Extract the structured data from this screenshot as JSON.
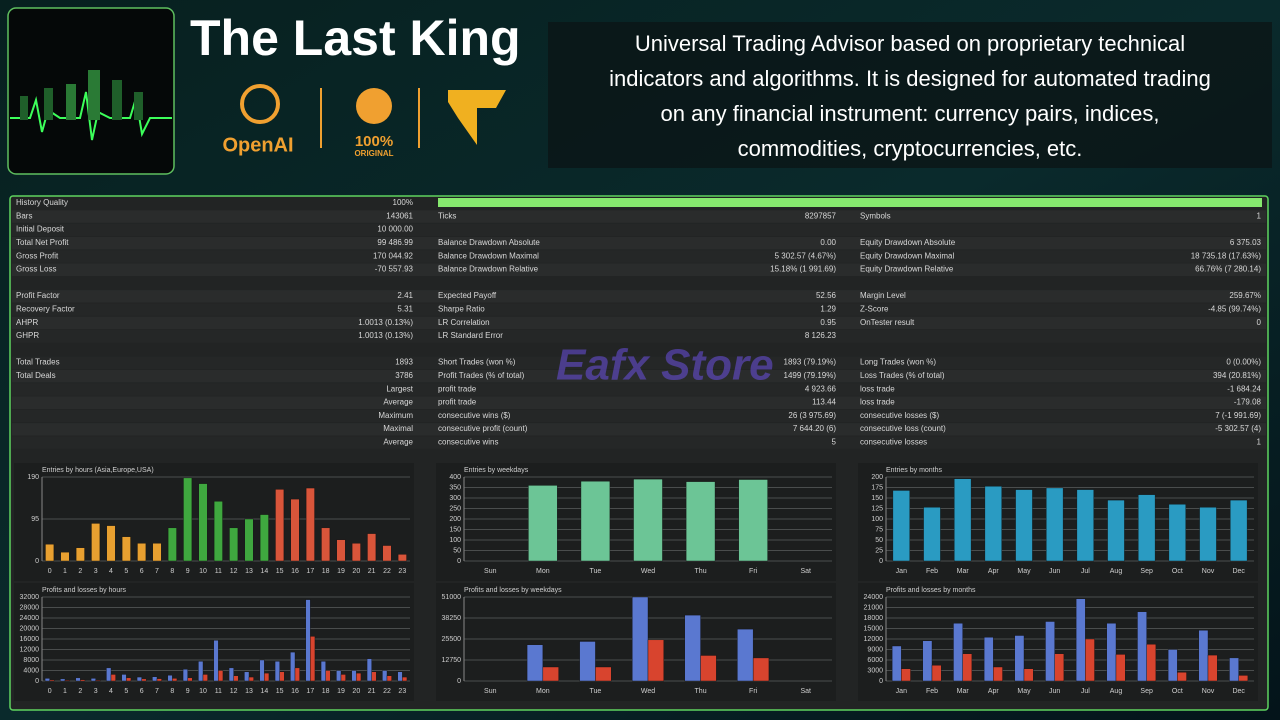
{
  "header": {
    "title": "The Last King",
    "badges": [
      "OpenAI",
      "100%",
      "ORIGINAL"
    ],
    "description": [
      "Universal Trading Advisor based on proprietary technical",
      "indicators and algorithms. It is designed for automated trading",
      "on any financial instrument: currency pairs, indices,",
      "commodities, cryptocurrencies, etc."
    ]
  },
  "watermark": "Eafx Store",
  "report": {
    "history_quality": {
      "label": "History Quality",
      "value": 100,
      "value_label": "100%"
    },
    "sections": [
      [
        [
          {
            "label": "Bars",
            "value": "143061"
          },
          {
            "label": "Ticks",
            "value": "8297857"
          },
          {
            "label": "Symbols",
            "value": "1"
          }
        ],
        [
          {
            "label": "Initial Deposit",
            "value": "10 000.00"
          },
          null,
          null
        ],
        [
          {
            "label": "Total Net Profit",
            "value": "99 486.99"
          },
          {
            "label": "Balance Drawdown Absolute",
            "value": "0.00"
          },
          {
            "label": "Equity Drawdown Absolute",
            "value": "6 375.03"
          }
        ],
        [
          {
            "label": "Gross Profit",
            "value": "170 044.92"
          },
          {
            "label": "Balance Drawdown Maximal",
            "value": "5 302.57 (4.67%)"
          },
          {
            "label": "Equity Drawdown Maximal",
            "value": "18 735.18 (17.63%)"
          }
        ],
        [
          {
            "label": "Gross Loss",
            "value": "-70 557.93"
          },
          {
            "label": "Balance Drawdown Relative",
            "value": "15.18% (1 991.69)"
          },
          {
            "label": "Equity Drawdown Relative",
            "value": "66.76% (7 280.14)"
          }
        ]
      ],
      [
        [
          {
            "label": "Profit Factor",
            "value": "2.41"
          },
          {
            "label": "Expected Payoff",
            "value": "52.56"
          },
          {
            "label": "Margin Level",
            "value": "259.67%"
          }
        ],
        [
          {
            "label": "Recovery Factor",
            "value": "5.31"
          },
          {
            "label": "Sharpe Ratio",
            "value": "1.29"
          },
          {
            "label": "Z-Score",
            "value": "-4.85 (99.74%)"
          }
        ],
        [
          {
            "label": "AHPR",
            "value": "1.0013 (0.13%)"
          },
          {
            "label": "LR Correlation",
            "value": "0.95"
          },
          {
            "label": "OnTester result",
            "value": "0"
          }
        ],
        [
          {
            "label": "GHPR",
            "value": "1.0013 (0.13%)"
          },
          {
            "label": "LR Standard Error",
            "value": "8 126.23"
          },
          null
        ]
      ],
      [
        [
          {
            "label": "Total Trades",
            "value": "1893"
          },
          {
            "label": "Short Trades (won %)",
            "value": "1893 (79.19%)"
          },
          {
            "label": "Long Trades (won %)",
            "value": "0 (0.00%)"
          }
        ],
        [
          {
            "label": "Total Deals",
            "value": "3786"
          },
          {
            "label": "Profit Trades (% of total)",
            "value": "1499 (79.19%)"
          },
          {
            "label": "Loss Trades (% of total)",
            "value": "394 (20.81%)"
          }
        ],
        [
          {
            "value": "Largest"
          },
          {
            "label": "profit trade",
            "value": "4 923.66"
          },
          {
            "label": "loss trade",
            "value": "-1 684.24"
          }
        ],
        [
          {
            "value": "Average"
          },
          {
            "label": "profit trade",
            "value": "113.44"
          },
          {
            "label": "loss trade",
            "value": "-179.08"
          }
        ],
        [
          {
            "value": "Maximum"
          },
          {
            "label": "consecutive wins ($)",
            "value": "26 (3 975.69)"
          },
          {
            "label": "consecutive losses ($)",
            "value": "7 (-1 991.69)"
          }
        ],
        [
          {
            "value": "Maximal"
          },
          {
            "label": "consecutive profit (count)",
            "value": "7 644.20 (6)"
          },
          {
            "label": "consecutive loss (count)",
            "value": "-5 302.57 (4)"
          }
        ],
        [
          {
            "value": "Average"
          },
          {
            "label": "consecutive wins",
            "value": "5"
          },
          {
            "label": "consecutive losses",
            "value": "1"
          }
        ]
      ]
    ]
  },
  "chart_data": [
    {
      "type": "bar",
      "title": "Entries by hours (Asia,Europe,USA)",
      "categories": [
        "0",
        "1",
        "2",
        "3",
        "4",
        "5",
        "6",
        "7",
        "8",
        "9",
        "10",
        "11",
        "12",
        "13",
        "14",
        "15",
        "16",
        "17",
        "18",
        "19",
        "20",
        "21",
        "22",
        "23"
      ],
      "series": [
        {
          "colors": [
            "#e8a030",
            "#e8a030",
            "#e8a030",
            "#e8a030",
            "#e8a030",
            "#e8a030",
            "#e8a030",
            "#e8a030",
            "#3fa83f",
            "#3fa83f",
            "#3fa83f",
            "#3fa83f",
            "#3fa83f",
            "#3fa83f",
            "#3fa83f",
            "#d9553a",
            "#d9553a",
            "#d9553a",
            "#d9553a",
            "#d9553a",
            "#d9553a",
            "#d9553a",
            "#d9553a",
            "#d9553a"
          ],
          "values": [
            38,
            20,
            30,
            85,
            80,
            55,
            40,
            40,
            75,
            188,
            175,
            135,
            75,
            95,
            105,
            162,
            140,
            165,
            75,
            48,
            40,
            62,
            35,
            15
          ]
        }
      ],
      "ylim": [
        0,
        190
      ],
      "yticks": [
        0,
        95,
        190
      ],
      "grid": true
    },
    {
      "type": "bar",
      "title": "Entries by weekdays",
      "categories": [
        "Sun",
        "Mon",
        "Tue",
        "Wed",
        "Thu",
        "Fri",
        "Sat"
      ],
      "series": [
        {
          "color": "#6cc596",
          "values": [
            0,
            360,
            380,
            390,
            378,
            388,
            0
          ]
        }
      ],
      "ylim": [
        0,
        400
      ],
      "yticks": [
        0,
        50,
        100,
        150,
        200,
        250,
        300,
        350,
        400
      ],
      "grid": true
    },
    {
      "type": "bar",
      "title": "Entries by months",
      "categories": [
        "Jan",
        "Feb",
        "Mar",
        "Apr",
        "May",
        "Jun",
        "Jul",
        "Aug",
        "Sep",
        "Oct",
        "Nov",
        "Dec"
      ],
      "series": [
        {
          "color": "#2a9bc2",
          "values": [
            168,
            128,
            196,
            178,
            170,
            174,
            170,
            145,
            158,
            135,
            128,
            145
          ]
        }
      ],
      "ylim": [
        0,
        200
      ],
      "yticks": [
        0,
        25,
        50,
        75,
        100,
        125,
        150,
        175,
        200
      ],
      "grid": true
    },
    {
      "type": "bar",
      "title": "Profits and losses by hours",
      "categories": [
        "0",
        "1",
        "2",
        "3",
        "4",
        "5",
        "6",
        "7",
        "8",
        "9",
        "10",
        "11",
        "12",
        "13",
        "14",
        "15",
        "16",
        "17",
        "18",
        "19",
        "20",
        "21",
        "22",
        "23"
      ],
      "series": [
        {
          "color": "#5a78d0",
          "values": [
            1000,
            800,
            1200,
            1000,
            5000,
            2500,
            1500,
            1600,
            2200,
            4500,
            7500,
            15500,
            5000,
            3500,
            8000,
            7500,
            11000,
            31000,
            7500,
            4000,
            4000,
            8500,
            4000,
            3500
          ]
        },
        {
          "color": "#d8442e",
          "values": [
            400,
            300,
            500,
            300,
            2500,
            1200,
            800,
            900,
            1000,
            1200,
            2500,
            4000,
            2000,
            1500,
            3000,
            3500,
            5000,
            17000,
            4000,
            2500,
            3000,
            3500,
            2000,
            1500
          ]
        }
      ],
      "ylim": [
        0,
        32000
      ],
      "yticks": [
        0,
        4000,
        8000,
        12000,
        16000,
        20000,
        24000,
        28000,
        32000
      ],
      "grid": true
    },
    {
      "type": "bar",
      "title": "Profits and losses by weekdays",
      "categories": [
        "Sun",
        "Mon",
        "Tue",
        "Wed",
        "Thu",
        "Fri",
        "Sat"
      ],
      "series": [
        {
          "color": "#5a78d0",
          "values": [
            0,
            22000,
            24000,
            51000,
            40000,
            31500,
            0
          ]
        },
        {
          "color": "#d8442e",
          "values": [
            0,
            8500,
            8500,
            25000,
            15500,
            14000,
            0
          ]
        }
      ],
      "ylim": [
        0,
        51000
      ],
      "yticks": [
        0,
        12750,
        25500,
        38250,
        51000
      ],
      "grid": true
    },
    {
      "type": "bar",
      "title": "Profits and losses by months",
      "categories": [
        "Jan",
        "Feb",
        "Mar",
        "Apr",
        "May",
        "Jun",
        "Jul",
        "Aug",
        "Sep",
        "Oct",
        "Nov",
        "Dec"
      ],
      "series": [
        {
          "color": "#5a78d0",
          "values": [
            10000,
            11500,
            16500,
            12500,
            13000,
            17000,
            23500,
            16500,
            19800,
            9000,
            14500,
            6600
          ]
        },
        {
          "color": "#d8442e",
          "values": [
            3500,
            4500,
            7800,
            4000,
            3500,
            7800,
            12000,
            7600,
            10500,
            2500,
            7400,
            1600
          ]
        }
      ],
      "ylim": [
        0,
        24000
      ],
      "yticks": [
        0,
        3000,
        6000,
        9000,
        12000,
        15000,
        18000,
        21000,
        24000
      ],
      "grid": true
    }
  ]
}
